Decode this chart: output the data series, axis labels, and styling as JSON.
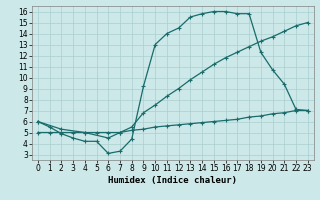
{
  "title": "",
  "xlabel": "Humidex (Indice chaleur)",
  "bg_color": "#cce8e8",
  "grid_color": "#aacfcf",
  "line_color": "#1a6b6b",
  "xlim": [
    -0.5,
    23.5
  ],
  "ylim": [
    2.5,
    16.5
  ],
  "xticks": [
    0,
    1,
    2,
    3,
    4,
    5,
    6,
    7,
    8,
    9,
    10,
    11,
    12,
    13,
    14,
    15,
    16,
    17,
    18,
    19,
    20,
    21,
    22,
    23
  ],
  "yticks": [
    3,
    4,
    5,
    6,
    7,
    8,
    9,
    10,
    11,
    12,
    13,
    14,
    15,
    16
  ],
  "curve1_x": [
    0,
    1,
    2,
    3,
    4,
    5,
    6,
    7,
    8,
    9,
    10,
    11,
    12,
    13,
    14,
    15,
    16,
    17,
    18,
    19,
    20,
    21,
    22,
    23
  ],
  "curve1_y": [
    6.0,
    5.5,
    4.9,
    4.5,
    4.2,
    4.2,
    3.1,
    3.3,
    4.4,
    9.2,
    13.0,
    14.0,
    14.5,
    15.5,
    15.8,
    16.0,
    16.0,
    15.8,
    15.8,
    12.3,
    10.7,
    9.4,
    7.1,
    7.0
  ],
  "curve2_x": [
    0,
    2,
    4,
    6,
    7,
    8,
    9,
    10,
    11,
    12,
    13,
    14,
    15,
    16,
    17,
    18,
    19,
    20,
    21,
    22,
    23
  ],
  "curve2_y": [
    6.0,
    5.3,
    5.0,
    4.5,
    5.0,
    5.5,
    6.8,
    7.5,
    8.3,
    9.0,
    9.8,
    10.5,
    11.2,
    11.8,
    12.3,
    12.8,
    13.3,
    13.7,
    14.2,
    14.7,
    15.0
  ],
  "curve3_x": [
    0,
    1,
    2,
    3,
    4,
    5,
    6,
    7,
    8,
    9,
    10,
    11,
    12,
    13,
    14,
    15,
    16,
    17,
    18,
    19,
    20,
    21,
    22,
    23
  ],
  "curve3_y": [
    5.0,
    5.0,
    5.0,
    5.0,
    5.0,
    5.0,
    5.0,
    5.0,
    5.2,
    5.3,
    5.5,
    5.6,
    5.7,
    5.8,
    5.9,
    6.0,
    6.1,
    6.2,
    6.4,
    6.5,
    6.7,
    6.8,
    7.0,
    7.0
  ],
  "marker": "+",
  "markersize": 3,
  "linewidth": 0.9,
  "fontsize_tick": 5.5,
  "fontsize_xlabel": 6.5
}
